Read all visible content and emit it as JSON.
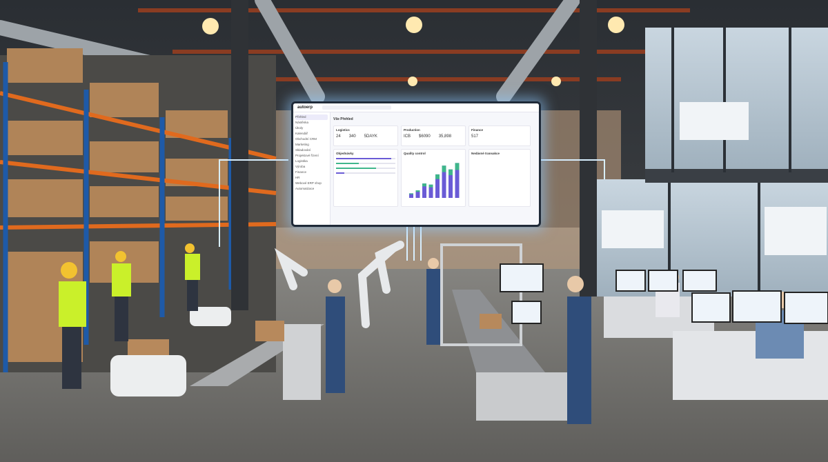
{
  "dashboard": {
    "logo": "autoerp",
    "page_title": "Vše Přehled",
    "sidebar_items": [
      "Přehled",
      "Nástěnka",
      "Úkoly",
      "Kalendář",
      "Obchodní CRM",
      "Marketing",
      "Skladování",
      "Projektové řízení",
      "Logistika",
      "Výroba",
      "Finance",
      "HR",
      "Webové ERP shop",
      "Automatizace"
    ],
    "cards": {
      "logistics": {
        "title": "Logistics",
        "values": [
          "24",
          "340",
          "5DAYK"
        ]
      },
      "production": {
        "title": "Production",
        "values": [
          "ICB",
          "$6090",
          "35,898"
        ]
      },
      "finance": {
        "title": "Finance",
        "values": [
          "517"
        ]
      },
      "orders": {
        "title": "Objednávky"
      },
      "quality": {
        "title": "Quality control"
      },
      "recent": {
        "title": "Nedávné transakce"
      }
    },
    "progress": [
      0.93,
      0.38,
      0.67,
      0.14
    ],
    "chart_values": [
      12,
      20,
      38,
      35,
      62,
      85,
      75,
      92
    ],
    "accent": "#6a5bd6",
    "green": "#3fb68b"
  }
}
